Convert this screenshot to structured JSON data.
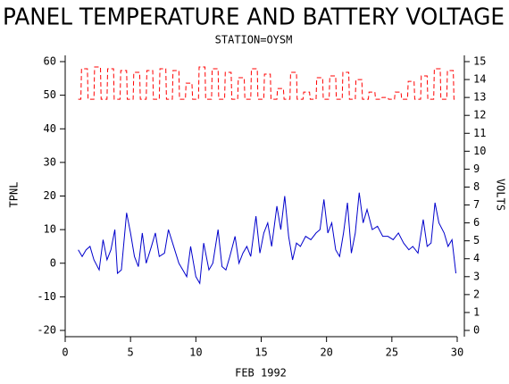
{
  "chart_data": {
    "type": "line",
    "title": "PANEL TEMPERATURE AND BATTERY VOLTAGE",
    "subtitle": "STATION=OYSM",
    "xlabel": "FEB 1992",
    "ylabel": "TPNL",
    "y2label": "VOLTS",
    "xlim": [
      0,
      30
    ],
    "xticks": [
      0,
      5,
      10,
      15,
      20,
      25,
      30
    ],
    "ylim": [
      -20,
      60
    ],
    "yticks": [
      -20,
      -10,
      0,
      10,
      20,
      30,
      40,
      50,
      60
    ],
    "y2lim": [
      0,
      15
    ],
    "y2ticks": [
      0,
      1,
      2,
      3,
      4,
      5,
      6,
      7,
      8,
      9,
      10,
      11,
      12,
      13,
      14,
      15
    ],
    "series": [
      {
        "color": "#0000cc",
        "dash": false,
        "x": [
          1,
          1.3,
          1.6,
          1.9,
          2.2,
          2.6,
          2.9,
          3.2,
          3.5,
          3.8,
          4.0,
          4.3,
          4.7,
          5.0,
          5.3,
          5.6,
          5.9,
          6.2,
          6.6,
          6.9,
          7.2,
          7.6,
          7.9,
          8.3,
          8.7,
          9.0,
          9.3,
          9.6,
          10.0,
          10.3,
          10.6,
          11.0,
          11.3,
          11.7,
          12.0,
          12.3,
          12.6,
          13.0,
          13.3,
          13.6,
          13.9,
          14.2,
          14.6,
          14.9,
          15.2,
          15.5,
          15.8,
          16.2,
          16.5,
          16.8,
          17.1,
          17.4,
          17.7,
          18.0,
          18.4,
          18.8,
          19.2,
          19.5,
          19.8,
          20.1,
          20.4,
          20.7,
          21.0,
          21.3,
          21.6,
          21.9,
          22.2,
          22.5,
          22.8,
          23.1,
          23.5,
          23.9,
          24.3,
          24.7,
          25.1,
          25.5,
          25.9,
          26.3,
          26.6,
          27.0,
          27.4,
          27.7,
          28.0,
          28.3,
          28.6,
          29.0,
          29.3,
          29.6,
          29.9
        ],
        "values": [
          4,
          2,
          4,
          5,
          1,
          -2,
          7,
          1,
          4,
          10,
          -3,
          -2,
          15,
          9,
          2,
          -1,
          9,
          0,
          5,
          9,
          2,
          3,
          10,
          5,
          0,
          -2,
          -4,
          5,
          -4,
          -6,
          6,
          -2,
          0,
          10,
          -1,
          -2,
          2,
          8,
          0,
          3,
          5,
          2,
          14,
          3,
          9,
          12,
          5,
          17,
          10,
          20,
          8,
          1,
          6,
          5,
          8,
          7,
          9,
          10,
          19,
          9,
          12,
          4,
          2,
          9,
          18,
          3,
          9,
          21,
          12,
          16,
          10,
          11,
          8,
          8,
          7,
          9,
          6,
          4,
          5,
          3,
          13,
          5,
          6,
          18,
          12,
          9,
          5,
          7,
          -3
        ]
      },
      {
        "color": "#ff0000",
        "dash": true,
        "axis": "y2",
        "x": [
          1,
          1.2,
          1.25,
          1.7,
          1.75,
          2.2,
          2.25,
          2.7,
          2.75,
          3.2,
          3.25,
          3.7,
          3.75,
          4.2,
          4.25,
          4.7,
          4.75,
          5.2,
          5.25,
          5.7,
          5.75,
          6.2,
          6.25,
          6.7,
          6.75,
          7.2,
          7.25,
          7.7,
          7.75,
          8.2,
          8.25,
          8.7,
          8.75,
          9.2,
          9.25,
          9.7,
          9.75,
          10.2,
          10.25,
          10.7,
          10.75,
          11.2,
          11.25,
          11.7,
          11.75,
          12.2,
          12.25,
          12.7,
          12.75,
          13.2,
          13.25,
          13.7,
          13.75,
          14.2,
          14.25,
          14.7,
          14.75,
          15.2,
          15.25,
          15.7,
          15.75,
          16.2,
          16.25,
          16.7,
          16.75,
          17.2,
          17.25,
          17.7,
          17.75,
          18.2,
          18.25,
          18.7,
          18.75,
          19.2,
          19.25,
          19.7,
          19.75,
          20.2,
          20.25,
          20.7,
          20.75,
          21.2,
          21.25,
          21.7,
          21.75,
          22.2,
          22.25,
          22.7,
          22.75,
          23.2,
          23.25,
          23.7,
          23.75,
          24.2,
          24.25,
          24.7,
          24.75,
          25.2,
          25.25,
          25.7,
          25.75,
          26.2,
          26.25,
          26.7,
          26.75,
          27.2,
          27.25,
          27.7,
          27.75,
          28.2,
          28.25,
          28.7,
          28.75,
          29.2,
          29.25,
          29.7,
          29.75,
          30
        ],
        "values": [
          12.9,
          12.9,
          14.6,
          14.6,
          12.9,
          12.9,
          14.7,
          14.7,
          12.9,
          12.9,
          14.6,
          14.6,
          12.9,
          12.9,
          14.5,
          14.5,
          12.9,
          12.9,
          14.4,
          14.4,
          12.9,
          12.9,
          14.5,
          14.5,
          12.9,
          12.9,
          14.6,
          14.6,
          12.9,
          12.9,
          14.5,
          14.5,
          12.9,
          12.9,
          13.8,
          13.8,
          12.9,
          12.9,
          14.7,
          14.7,
          12.9,
          12.9,
          14.6,
          14.6,
          12.9,
          12.9,
          14.4,
          14.4,
          12.9,
          12.9,
          14.1,
          14.1,
          12.9,
          12.9,
          14.6,
          14.6,
          12.9,
          12.9,
          14.3,
          14.3,
          12.9,
          12.9,
          13.5,
          13.5,
          12.9,
          12.9,
          14.4,
          14.4,
          12.9,
          12.9,
          13.3,
          13.3,
          12.9,
          12.9,
          14.1,
          14.1,
          12.9,
          12.9,
          14.2,
          14.2,
          12.9,
          12.9,
          14.4,
          14.4,
          12.9,
          12.9,
          14.0,
          14.0,
          12.9,
          12.9,
          13.3,
          13.3,
          12.9,
          12.9,
          13.0,
          13.0,
          12.9,
          12.9,
          13.3,
          13.3,
          12.9,
          12.9,
          13.9,
          13.9,
          12.9,
          12.9,
          14.2,
          14.2,
          12.9,
          12.9,
          14.6,
          14.6,
          12.9,
          12.9,
          14.5,
          14.5,
          12.9,
          12.9
        ]
      }
    ]
  }
}
